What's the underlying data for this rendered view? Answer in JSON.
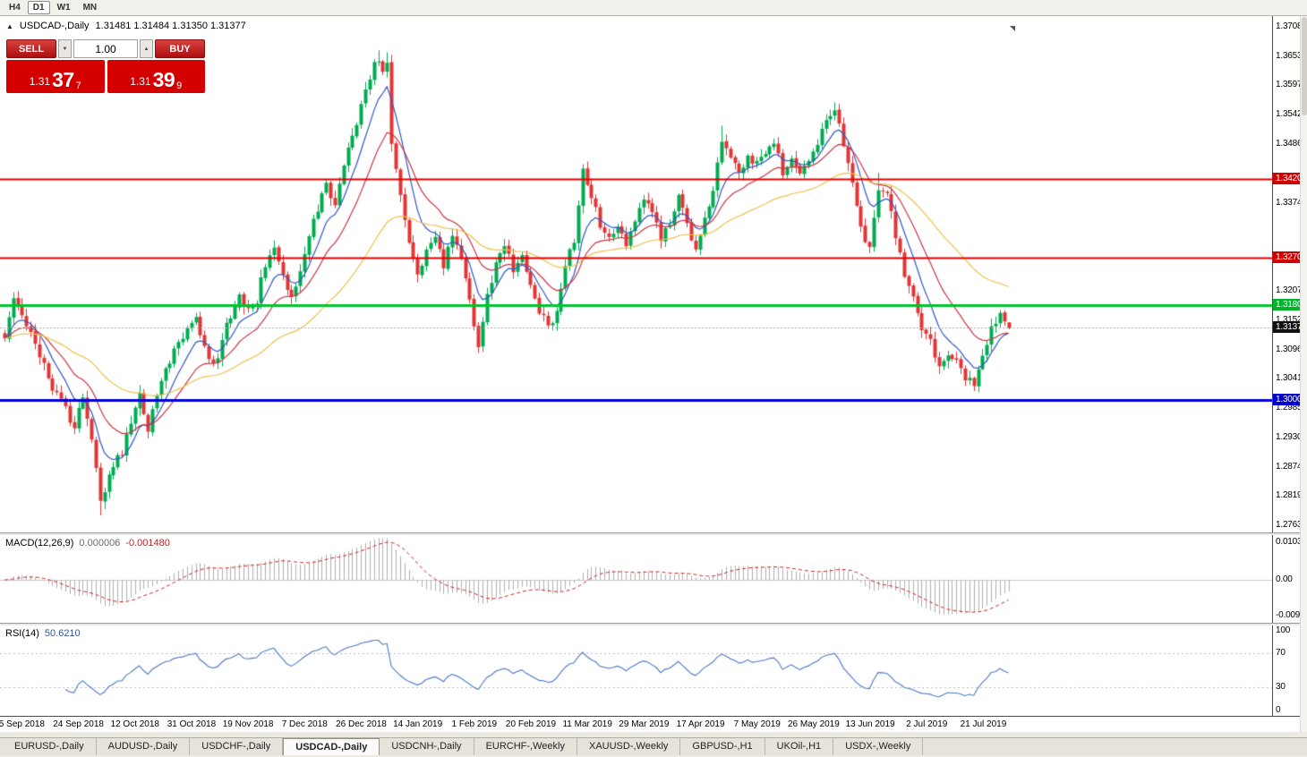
{
  "toolbar": {
    "periods": [
      {
        "label": "H4",
        "active": false
      },
      {
        "label": "D1",
        "active": true
      },
      {
        "label": "W1",
        "active": false
      },
      {
        "label": "MN",
        "active": false
      }
    ]
  },
  "icons": {
    "symbol_marker": "▲",
    "volume_down": "▼",
    "volume_up": "▲"
  },
  "chart": {
    "title": {
      "symbol": "USDCAD-,Daily",
      "ohlc": "1.31481 1.31484 1.31350 1.31377"
    }
  },
  "trade": {
    "sell_label": "SELL",
    "buy_label": "BUY",
    "volume": "1.00",
    "sell_big": "1.31",
    "sell_pips": "37",
    "sell_pipette": "7",
    "buy_big": "1.31",
    "buy_pips": "39",
    "buy_pipette": "9"
  },
  "macd": {
    "name": "MACD(12,26,9)",
    "value_main": "0.000006",
    "value_signal": "-0.001480",
    "axis_top": "0.010311",
    "axis_mid": "0.00",
    "axis_bottom": "-0.009201"
  },
  "rsi": {
    "name": "RSI(14)",
    "value": "50.6210"
  },
  "tabs": [
    {
      "label": "EURUSD-,Daily",
      "active": false
    },
    {
      "label": "AUDUSD-,Daily",
      "active": false
    },
    {
      "label": "USDCHF-,Daily",
      "active": false
    },
    {
      "label": "USDCAD-,Daily",
      "active": true
    },
    {
      "label": "USDCNH-,Daily",
      "active": false
    },
    {
      "label": "EURCHF-,Weekly",
      "active": false
    },
    {
      "label": "XAUUSD-,Weekly",
      "active": false
    },
    {
      "label": "GBPUSD-,H1",
      "active": false
    },
    {
      "label": "UKOil-,H1",
      "active": false
    },
    {
      "label": "USDX-,Weekly",
      "active": false
    }
  ],
  "chart_data": {
    "type": "candlestick",
    "symbol": "USDCAD",
    "timeframe": "Daily",
    "bar_count": 232,
    "y_range": {
      "top": 1.37085,
      "bottom": 1.27635
    },
    "ohlc_display": {
      "open": 1.31481,
      "high": 1.31484,
      "low": 1.3135,
      "close": 1.31377
    },
    "colors": {
      "up": "#00ab51",
      "down": "#e23535"
    },
    "y_axis_labels": [
      "1.37085",
      "1.36530",
      "1.35975",
      "1.35420",
      "1.34865",
      "1.33740",
      "1.32075",
      "1.31520",
      "1.30965",
      "1.30410",
      "1.29855",
      "1.29300",
      "1.28745",
      "1.28190",
      "1.27635"
    ],
    "x_labels": [
      "5 Sep 2018",
      "24 Sep 2018",
      "12 Oct 2018",
      "31 Oct 2018",
      "19 Nov 2018",
      "7 Dec 2018",
      "26 Dec 2018",
      "14 Jan 2019",
      "1 Feb 2019",
      "20 Feb 2019",
      "11 Mar 2019",
      "29 Mar 2019",
      "17 Apr 2019",
      "7 May 2019",
      "26 May 2019",
      "13 Jun 2019",
      "2 Jul 2019",
      "21 Jul 2019"
    ],
    "close_keyframes": [
      [
        0,
        1.312
      ],
      [
        2,
        1.3185
      ],
      [
        4,
        1.316
      ],
      [
        7,
        1.3105
      ],
      [
        10,
        1.3042
      ],
      [
        13,
        1.2998
      ],
      [
        16,
        1.2948
      ],
      [
        18,
        1.3008
      ],
      [
        20,
        1.293
      ],
      [
        22,
        1.2815
      ],
      [
        24,
        1.2852
      ],
      [
        27,
        1.2905
      ],
      [
        30,
        1.2982
      ],
      [
        31,
        1.3005
      ],
      [
        33,
        1.2948
      ],
      [
        36,
        1.3035
      ],
      [
        39,
        1.3092
      ],
      [
        42,
        1.3128
      ],
      [
        44,
        1.3155
      ],
      [
        46,
        1.3095
      ],
      [
        48,
        1.3062
      ],
      [
        50,
        1.3112
      ],
      [
        52,
        1.3165
      ],
      [
        54,
        1.3208
      ],
      [
        56,
        1.3165
      ],
      [
        58,
        1.3188
      ],
      [
        60,
        1.3262
      ],
      [
        62,
        1.3292
      ],
      [
        64,
        1.3235
      ],
      [
        66,
        1.3192
      ],
      [
        68,
        1.3255
      ],
      [
        70,
        1.3318
      ],
      [
        72,
        1.3365
      ],
      [
        74,
        1.3418
      ],
      [
        76,
        1.3368
      ],
      [
        78,
        1.3445
      ],
      [
        80,
        1.3495
      ],
      [
        82,
        1.3558
      ],
      [
        84,
        1.3615
      ],
      [
        86,
        1.3652
      ],
      [
        87,
        1.3628
      ],
      [
        88,
        1.3645
      ],
      [
        89,
        1.3495
      ],
      [
        91,
        1.3392
      ],
      [
        93,
        1.3292
      ],
      [
        95,
        1.3235
      ],
      [
        97,
        1.3282
      ],
      [
        99,
        1.3302
      ],
      [
        101,
        1.3255
      ],
      [
        103,
        1.3322
      ],
      [
        105,
        1.3272
      ],
      [
        107,
        1.3188
      ],
      [
        109,
        1.3108
      ],
      [
        111,
        1.3198
      ],
      [
        113,
        1.3265
      ],
      [
        115,
        1.3302
      ],
      [
        117,
        1.3252
      ],
      [
        119,
        1.3275
      ],
      [
        121,
        1.3222
      ],
      [
        123,
        1.3172
      ],
      [
        125,
        1.3145
      ],
      [
        127,
        1.3162
      ],
      [
        129,
        1.3258
      ],
      [
        131,
        1.3308
      ],
      [
        133,
        1.3442
      ],
      [
        135,
        1.3392
      ],
      [
        137,
        1.3332
      ],
      [
        139,
        1.3315
      ],
      [
        141,
        1.3335
      ],
      [
        143,
        1.3292
      ],
      [
        145,
        1.3345
      ],
      [
        147,
        1.3382
      ],
      [
        149,
        1.3348
      ],
      [
        151,
        1.3312
      ],
      [
        153,
        1.3332
      ],
      [
        155,
        1.3382
      ],
      [
        157,
        1.3332
      ],
      [
        159,
        1.3288
      ],
      [
        161,
        1.3342
      ],
      [
        163,
        1.3388
      ],
      [
        165,
        1.3498
      ],
      [
        167,
        1.3462
      ],
      [
        169,
        1.3432
      ],
      [
        171,
        1.3465
      ],
      [
        173,
        1.3448
      ],
      [
        175,
        1.3475
      ],
      [
        177,
        1.3492
      ],
      [
        179,
        1.3432
      ],
      [
        181,
        1.3462
      ],
      [
        183,
        1.3432
      ],
      [
        185,
        1.3448
      ],
      [
        187,
        1.3492
      ],
      [
        189,
        1.3532
      ],
      [
        191,
        1.3558
      ],
      [
        193,
        1.3482
      ],
      [
        195,
        1.3422
      ],
      [
        197,
        1.3332
      ],
      [
        199,
        1.3288
      ],
      [
        201,
        1.3402
      ],
      [
        203,
        1.3392
      ],
      [
        205,
        1.3312
      ],
      [
        207,
        1.3232
      ],
      [
        209,
        1.3192
      ],
      [
        211,
        1.3132
      ],
      [
        213,
        1.3112
      ],
      [
        215,
        1.3062
      ],
      [
        217,
        1.3092
      ],
      [
        219,
        1.3078
      ],
      [
        221,
        1.3048
      ],
      [
        223,
        1.3032
      ],
      [
        225,
        1.3078
      ],
      [
        227,
        1.3132
      ],
      [
        229,
        1.3172
      ],
      [
        231,
        1.3138
      ]
    ],
    "wick_overrides": [
      {
        "i": 22,
        "low": 1.2782
      },
      {
        "i": 86,
        "high": 1.3664
      },
      {
        "i": 88,
        "high": 1.366
      },
      {
        "i": 165,
        "high": 1.3521
      },
      {
        "i": 191,
        "high": 1.3565
      },
      {
        "i": 201,
        "high": 1.3432
      },
      {
        "i": 223,
        "low": 1.3018
      }
    ],
    "moving_averages": [
      {
        "period": 8,
        "color": "#3056c8"
      },
      {
        "period": 18,
        "color": "#cc3344"
      },
      {
        "period": 50,
        "color": "#eec04a"
      }
    ],
    "levels": [
      {
        "price": 1.34206,
        "color": "#dd0000",
        "width": 2,
        "badge": "#d00000"
      },
      {
        "price": 1.32701,
        "color": "#dd0000",
        "width": 2,
        "badge": "#d00000"
      },
      {
        "price": 1.31801,
        "color": "#00c42e",
        "width": 3,
        "badge": "#00b42a"
      },
      {
        "price": 1.30004,
        "color": "#0000dd",
        "width": 3,
        "badge": "#0000c8"
      },
      {
        "price": 1.31377,
        "color": "#aaaaaa",
        "width": 1,
        "dash": [
          2,
          2
        ],
        "badge": "#111111",
        "current": true
      }
    ],
    "macd": {
      "fast": 12,
      "slow": 26,
      "signal": 9,
      "display_main": 6e-06,
      "display_signal": -0.00148,
      "axis_max": 0.010311,
      "axis_min": -0.009201
    },
    "rsi": {
      "period": 14,
      "display_value": 50.621,
      "levels": [
        70,
        30
      ],
      "axis": [
        "100",
        "70",
        "30",
        "0"
      ]
    }
  }
}
